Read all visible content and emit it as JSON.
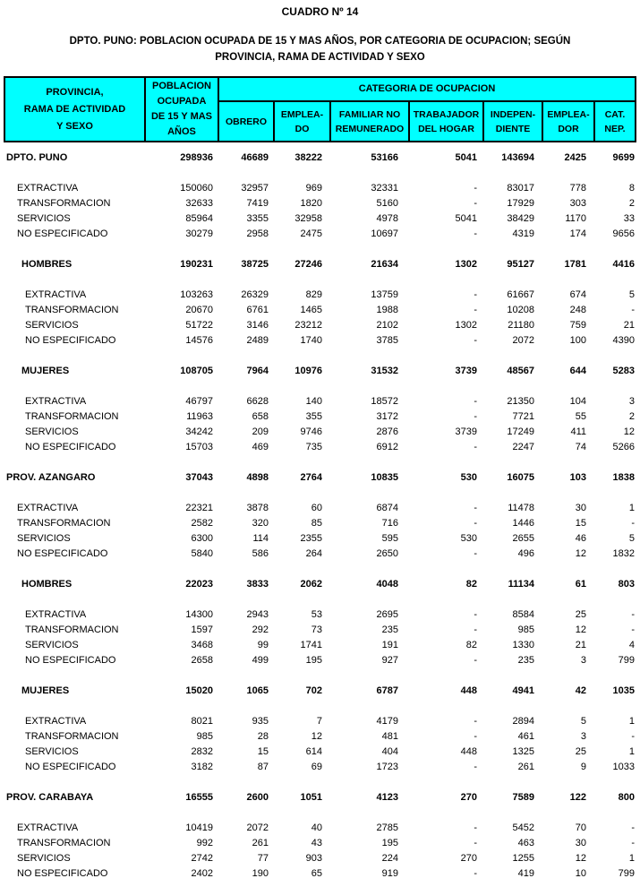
{
  "page": {
    "title": "CUADRO Nº 14",
    "subtitle_line1": "DPTO. PUNO: POBLACION OCUPADA DE 15 Y MAS AÑOS, POR CATEGORIA DE OCUPACION; SEGÚN",
    "subtitle_line2": "PROVINCIA, RAMA DE ACTIVIDAD Y SEXO"
  },
  "colors": {
    "header_bg": "#00FFFF",
    "border": "#000000",
    "text": "#000000"
  },
  "table": {
    "header": {
      "col1_lines": [
        "PROVINCIA,",
        "RAMA DE ACTIVIDAD",
        "Y SEXO"
      ],
      "col2_lines": [
        "POBLACION",
        "OCUPADA",
        "DE 15 Y MAS",
        "AÑOS"
      ],
      "group": "CATEGORIA DE OCUPACION",
      "subcols": [
        [
          "OBRERO",
          ""
        ],
        [
          "EMPLEA-",
          "DO"
        ],
        [
          "FAMILIAR NO",
          "REMUNERADO"
        ],
        [
          "TRABAJADOR",
          "DEL HOGAR"
        ],
        [
          "INDEPEN-",
          "DIENTE"
        ],
        [
          "EMPLEA-",
          "DOR"
        ],
        [
          "CAT.",
          "NEP."
        ]
      ]
    },
    "empty_mark": "-",
    "sections": [
      {
        "level": 0,
        "total": {
          "label": "DPTO. PUNO",
          "values": [
            "298936",
            "46689",
            "38222",
            "53166",
            "5041",
            "143694",
            "2425",
            "9699"
          ]
        },
        "rows": [
          {
            "label": "EXTRACTIVA",
            "values": [
              "150060",
              "32957",
              "969",
              "32331",
              "-",
              "83017",
              "778",
              "8"
            ]
          },
          {
            "label": "TRANSFORMACION",
            "values": [
              "32633",
              "7419",
              "1820",
              "5160",
              "-",
              "17929",
              "303",
              "2"
            ]
          },
          {
            "label": "SERVICIOS",
            "values": [
              "85964",
              "3355",
              "32958",
              "4978",
              "5041",
              "38429",
              "1170",
              "33"
            ]
          },
          {
            "label": "NO ESPECIFICADO",
            "values": [
              "30279",
              "2958",
              "2475",
              "10697",
              "-",
              "4319",
              "174",
              "9656"
            ]
          }
        ]
      },
      {
        "level": 1,
        "total": {
          "label": "HOMBRES",
          "values": [
            "190231",
            "38725",
            "27246",
            "21634",
            "1302",
            "95127",
            "1781",
            "4416"
          ]
        },
        "rows": [
          {
            "label": "EXTRACTIVA",
            "values": [
              "103263",
              "26329",
              "829",
              "13759",
              "-",
              "61667",
              "674",
              "5"
            ]
          },
          {
            "label": "TRANSFORMACION",
            "values": [
              "20670",
              "6761",
              "1465",
              "1988",
              "-",
              "10208",
              "248",
              "-"
            ]
          },
          {
            "label": "SERVICIOS",
            "values": [
              "51722",
              "3146",
              "23212",
              "2102",
              "1302",
              "21180",
              "759",
              "21"
            ]
          },
          {
            "label": "NO ESPECIFICADO",
            "values": [
              "14576",
              "2489",
              "1740",
              "3785",
              "-",
              "2072",
              "100",
              "4390"
            ]
          }
        ]
      },
      {
        "level": 1,
        "total": {
          "label": "MUJERES",
          "values": [
            "108705",
            "7964",
            "10976",
            "31532",
            "3739",
            "48567",
            "644",
            "5283"
          ]
        },
        "rows": [
          {
            "label": "EXTRACTIVA",
            "values": [
              "46797",
              "6628",
              "140",
              "18572",
              "-",
              "21350",
              "104",
              "3"
            ]
          },
          {
            "label": "TRANSFORMACION",
            "values": [
              "11963",
              "658",
              "355",
              "3172",
              "-",
              "7721",
              "55",
              "2"
            ]
          },
          {
            "label": "SERVICIOS",
            "values": [
              "34242",
              "209",
              "9746",
              "2876",
              "3739",
              "17249",
              "411",
              "12"
            ]
          },
          {
            "label": "NO ESPECIFICADO",
            "values": [
              "15703",
              "469",
              "735",
              "6912",
              "-",
              "2247",
              "74",
              "5266"
            ]
          }
        ]
      },
      {
        "level": 0,
        "total": {
          "label": "PROV. AZANGARO",
          "values": [
            "37043",
            "4898",
            "2764",
            "10835",
            "530",
            "16075",
            "103",
            "1838"
          ]
        },
        "rows": [
          {
            "label": "EXTRACTIVA",
            "values": [
              "22321",
              "3878",
              "60",
              "6874",
              "-",
              "11478",
              "30",
              "1"
            ]
          },
          {
            "label": "TRANSFORMACION",
            "values": [
              "2582",
              "320",
              "85",
              "716",
              "-",
              "1446",
              "15",
              "-"
            ]
          },
          {
            "label": "SERVICIOS",
            "values": [
              "6300",
              "114",
              "2355",
              "595",
              "530",
              "2655",
              "46",
              "5"
            ]
          },
          {
            "label": "NO ESPECIFICADO",
            "values": [
              "5840",
              "586",
              "264",
              "2650",
              "-",
              "496",
              "12",
              "1832"
            ]
          }
        ]
      },
      {
        "level": 1,
        "total": {
          "label": "HOMBRES",
          "values": [
            "22023",
            "3833",
            "2062",
            "4048",
            "82",
            "11134",
            "61",
            "803"
          ]
        },
        "rows": [
          {
            "label": "EXTRACTIVA",
            "values": [
              "14300",
              "2943",
              "53",
              "2695",
              "-",
              "8584",
              "25",
              "-"
            ]
          },
          {
            "label": "TRANSFORMACION",
            "values": [
              "1597",
              "292",
              "73",
              "235",
              "-",
              "985",
              "12",
              "-"
            ]
          },
          {
            "label": "SERVICIOS",
            "values": [
              "3468",
              "99",
              "1741",
              "191",
              "82",
              "1330",
              "21",
              "4"
            ]
          },
          {
            "label": "NO ESPECIFICADO",
            "values": [
              "2658",
              "499",
              "195",
              "927",
              "-",
              "235",
              "3",
              "799"
            ]
          }
        ]
      },
      {
        "level": 1,
        "total": {
          "label": "MUJERES",
          "values": [
            "15020",
            "1065",
            "702",
            "6787",
            "448",
            "4941",
            "42",
            "1035"
          ]
        },
        "rows": [
          {
            "label": "EXTRACTIVA",
            "values": [
              "8021",
              "935",
              "7",
              "4179",
              "-",
              "2894",
              "5",
              "1"
            ]
          },
          {
            "label": "TRANSFORMACION",
            "values": [
              "985",
              "28",
              "12",
              "481",
              "-",
              "461",
              "3",
              "-"
            ]
          },
          {
            "label": "SERVICIOS",
            "values": [
              "2832",
              "15",
              "614",
              "404",
              "448",
              "1325",
              "25",
              "1"
            ]
          },
          {
            "label": "NO ESPECIFICADO",
            "values": [
              "3182",
              "87",
              "69",
              "1723",
              "-",
              "261",
              "9",
              "1033"
            ]
          }
        ]
      },
      {
        "level": 0,
        "total": {
          "label": "PROV. CARABAYA",
          "values": [
            "16555",
            "2600",
            "1051",
            "4123",
            "270",
            "7589",
            "122",
            "800"
          ]
        },
        "rows": [
          {
            "label": "EXTRACTIVA",
            "values": [
              "10419",
              "2072",
              "40",
              "2785",
              "-",
              "5452",
              "70",
              "-"
            ]
          },
          {
            "label": "TRANSFORMACION",
            "values": [
              "992",
              "261",
              "43",
              "195",
              "-",
              "463",
              "30",
              "-"
            ]
          },
          {
            "label": "SERVICIOS",
            "values": [
              "2742",
              "77",
              "903",
              "224",
              "270",
              "1255",
              "12",
              "1"
            ]
          },
          {
            "label": "NO ESPECIFICADO",
            "values": [
              "2402",
              "190",
              "65",
              "919",
              "-",
              "419",
              "10",
              "799"
            ]
          }
        ]
      }
    ]
  }
}
